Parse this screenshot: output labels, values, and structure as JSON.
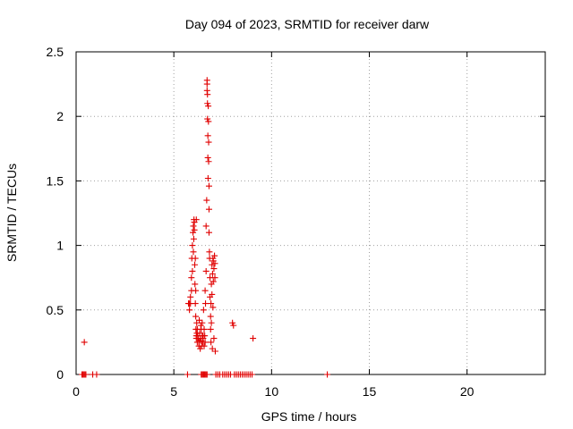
{
  "chart_data": {
    "type": "scatter",
    "title": "Day 094 of 2023, SRMTID for receiver darw",
    "xlabel": "GPS time / hours",
    "ylabel": "SRMTID / TECUs",
    "xlim": [
      0,
      24
    ],
    "ylim": [
      0,
      2.5
    ],
    "xticks": [
      0,
      5,
      10,
      15,
      20
    ],
    "yticks": [
      0,
      0.5,
      1,
      1.5,
      2,
      2.5
    ],
    "ytick_labels": [
      "0",
      "0.5",
      "1",
      "1.5",
      "2",
      "2.5"
    ],
    "grid": true,
    "marker": "plus",
    "color": "#e00000",
    "x": [
      0.3,
      0.35,
      0.4,
      0.45,
      0.5,
      0.42,
      0.85,
      1.05,
      5.7,
      5.75,
      5.8,
      5.8,
      5.85,
      5.85,
      5.9,
      5.9,
      5.92,
      5.95,
      5.95,
      5.98,
      6.0,
      6.0,
      6.02,
      6.03,
      6.05,
      6.05,
      6.07,
      6.08,
      6.1,
      6.1,
      6.12,
      6.12,
      6.13,
      6.15,
      6.15,
      6.15,
      6.17,
      6.18,
      6.2,
      6.2,
      6.22,
      6.25,
      6.28,
      6.3,
      6.3,
      6.32,
      6.35,
      6.35,
      6.38,
      6.4,
      6.4,
      6.42,
      6.45,
      6.45,
      6.48,
      6.5,
      6.5,
      6.52,
      6.55,
      6.55,
      6.58,
      6.6,
      6.6,
      6.62,
      6.65,
      6.65,
      6.68,
      6.7,
      6.7,
      6.7,
      6.72,
      6.72,
      6.72,
      6.74,
      6.74,
      6.75,
      6.76,
      6.77,
      6.78,
      6.78,
      6.8,
      6.8,
      6.8,
      6.82,
      6.83,
      6.85,
      6.85,
      6.88,
      6.88,
      6.9,
      6.9,
      6.92,
      6.92,
      6.95,
      6.95,
      6.97,
      6.98,
      7.0,
      7.0,
      7.02,
      7.02,
      7.05,
      7.05,
      7.08,
      7.1,
      7.1,
      7.12,
      7.15,
      7.25,
      7.35,
      7.5,
      7.6,
      7.7,
      7.8,
      7.9,
      8.0,
      8.05,
      8.1,
      8.2,
      8.3,
      8.4,
      8.5,
      8.6,
      8.7,
      8.8,
      8.9,
      9.0,
      9.05,
      12.85,
      6.4,
      6.45,
      6.5,
      6.55,
      6.6,
      6.65,
      6.7
    ],
    "y": [
      0.0,
      0.0,
      0.0,
      0.0,
      0.0,
      0.25,
      0.0,
      0.0,
      0.0,
      0.55,
      0.55,
      0.5,
      0.55,
      0.6,
      0.65,
      0.75,
      0.9,
      0.8,
      1.0,
      1.1,
      1.15,
      0.95,
      1.05,
      1.2,
      1.18,
      1.12,
      0.85,
      0.7,
      0.9,
      0.55,
      0.45,
      0.65,
      0.35,
      1.2,
      0.3,
      0.28,
      0.4,
      0.32,
      0.25,
      0.35,
      0.3,
      0.28,
      0.22,
      0.25,
      0.42,
      0.32,
      0.28,
      0.2,
      0.38,
      0.26,
      0.35,
      0.22,
      0.3,
      0.4,
      0.25,
      0.28,
      0.3,
      0.5,
      0.22,
      0.35,
      0.3,
      0.65,
      0.25,
      0.55,
      0.8,
      1.15,
      1.35,
      2.28,
      2.25,
      2.2,
      2.17,
      2.1,
      1.98,
      1.85,
      1.68,
      1.52,
      2.08,
      1.96,
      1.8,
      1.65,
      1.46,
      1.28,
      1.1,
      0.95,
      0.9,
      0.75,
      0.6,
      0.45,
      0.35,
      0.25,
      0.55,
      0.7,
      0.4,
      0.85,
      0.62,
      0.2,
      0.78,
      0.9,
      0.52,
      0.88,
      0.72,
      0.82,
      0.28,
      0.92,
      0.75,
      0.86,
      0.18,
      0.0,
      0.0,
      0.0,
      0.0,
      0.0,
      0.0,
      0.0,
      0.0,
      0.4,
      0.38,
      0.0,
      0.0,
      0.0,
      0.0,
      0.0,
      0.0,
      0.0,
      0.0,
      0.0,
      0.0,
      0.28,
      0.0,
      0.0,
      0.0,
      0.0,
      0.0,
      0.0,
      0.0,
      0.0
    ]
  }
}
